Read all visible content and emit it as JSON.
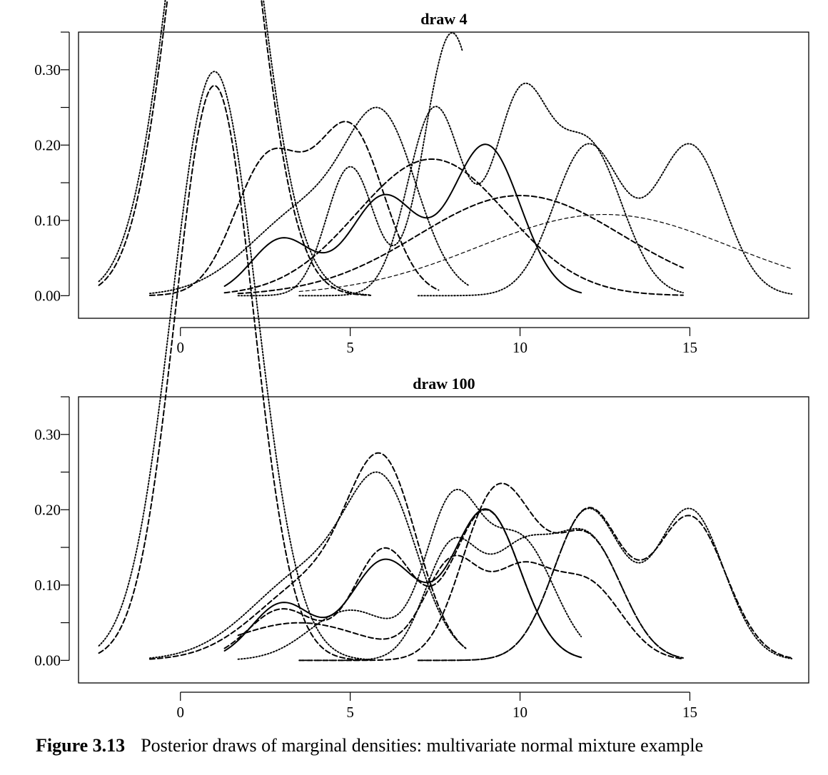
{
  "caption": {
    "number": "Figure 3.13",
    "text": "Posterior draws of marginal densities: multivariate normal mixture example"
  },
  "chart_data": [
    {
      "type": "line",
      "title": "draw 4",
      "xlabel": "",
      "ylabel": "",
      "xlim": [
        -3,
        18.5
      ],
      "ylim": [
        -0.03,
        0.35
      ],
      "x_ticks": [
        0,
        5,
        10,
        15
      ],
      "x_tick_labels": [
        "0",
        "5",
        "10",
        "15"
      ],
      "y_ticks": [
        0.0,
        0.1,
        0.2,
        0.3
      ],
      "y_tick_labels": [
        "0.00",
        "0.10",
        "0.20",
        "0.30"
      ],
      "grid": false,
      "series": [
        {
          "style": "dashed",
          "range": [
            -2.4,
            5.6
          ],
          "components": [
            [
              2.3,
              1.2,
              1.0
            ]
          ]
        },
        {
          "style": "dotted",
          "range": [
            -2.4,
            5.6
          ],
          "components": [
            [
              2.4,
              1.25,
              1.0
            ]
          ]
        },
        {
          "style": "dashed",
          "range": [
            -0.9,
            7.6
          ],
          "components": [
            [
              0.45,
              1.0,
              2.6
            ],
            [
              0.55,
              1.0,
              5.0
            ]
          ]
        },
        {
          "style": "dotted",
          "range": [
            -0.9,
            8.5
          ],
          "components": [
            [
              0.55,
              1.8,
              4.0
            ],
            [
              0.45,
              1.0,
              6.0
            ]
          ]
        },
        {
          "style": "solid",
          "range": [
            1.3,
            11.8
          ],
          "components": [
            [
              0.17,
              0.9,
              3.0
            ],
            [
              0.33,
              1.0,
              6.0
            ],
            [
              0.5,
              1.0,
              9.0
            ]
          ]
        },
        {
          "style": "dashed",
          "range": [
            1.3,
            14.8
          ],
          "components": [
            [
              1.0,
              2.2,
              7.4
            ]
          ]
        },
        {
          "style": "dotted",
          "range": [
            1.7,
            8.3
          ],
          "components": [
            [
              0.3,
              0.7,
              5.0
            ],
            [
              0.7,
              0.8,
              8.0
            ]
          ]
        },
        {
          "style": "dashed",
          "range": [
            1.7,
            14.8
          ],
          "components": [
            [
              1.0,
              3.0,
              10.0
            ]
          ]
        },
        {
          "style": "dotted",
          "range": [
            3.5,
            14.8
          ],
          "components": [
            [
              0.5,
              0.8,
              7.5
            ],
            [
              0.5,
              0.8,
              10.0
            ],
            [
              0.5,
              1.0,
              12.0
            ]
          ]
        },
        {
          "style": "dotted",
          "range": [
            7.0,
            18.0
          ],
          "components": [
            [
              0.5,
              1.0,
              12.0
            ],
            [
              0.5,
              1.0,
              15.0
            ]
          ]
        },
        {
          "style": "dashed-thin",
          "range": [
            3.5,
            18.0
          ],
          "components": [
            [
              1.0,
              3.7,
              12.5
            ]
          ]
        }
      ]
    },
    {
      "type": "line",
      "title": "draw 100",
      "xlabel": "",
      "ylabel": "",
      "xlim": [
        -3,
        18.5
      ],
      "ylim": [
        -0.03,
        0.35
      ],
      "x_ticks": [
        0,
        5,
        10,
        15
      ],
      "x_tick_labels": [
        "0",
        "5",
        "10",
        "15"
      ],
      "y_ticks": [
        0.0,
        0.1,
        0.2,
        0.3
      ],
      "y_tick_labels": [
        "0.00",
        "0.10",
        "0.20",
        "0.30"
      ],
      "grid": false,
      "series": [
        {
          "style": "dashed",
          "range": [
            -2.4,
            5.6
          ],
          "components": [
            [
              2.2,
              1.15,
              1.0
            ]
          ]
        },
        {
          "style": "dotted",
          "range": [
            -2.4,
            5.6
          ],
          "components": [
            [
              2.45,
              1.25,
              1.0
            ]
          ]
        },
        {
          "style": "dashed",
          "range": [
            -0.9,
            8.4
          ],
          "components": [
            [
              0.45,
              1.7,
              4.0
            ],
            [
              0.55,
              1.0,
              6.0
            ]
          ]
        },
        {
          "style": "dotted",
          "range": [
            -0.9,
            8.4
          ],
          "components": [
            [
              0.55,
              1.8,
              4.0
            ],
            [
              0.45,
              1.0,
              6.0
            ]
          ]
        },
        {
          "style": "solid",
          "range": [
            1.3,
            11.8
          ],
          "components": [
            [
              0.17,
              0.9,
              3.0
            ],
            [
              0.33,
              1.0,
              6.0
            ],
            [
              0.5,
              1.0,
              9.0
            ]
          ]
        },
        {
          "style": "dashed",
          "range": [
            1.3,
            11.8
          ],
          "components": [
            [
              0.17,
              1.0,
              3.0
            ],
            [
              0.33,
              0.9,
              6.0
            ],
            [
              0.5,
              1.0,
              9.0
            ]
          ]
        },
        {
          "style": "dotted",
          "range": [
            1.7,
            11.8
          ],
          "components": [
            [
              0.2,
              1.2,
              5.0
            ],
            [
              0.4,
              0.8,
              8.0
            ],
            [
              0.4,
              1.0,
              10.0
            ]
          ]
        },
        {
          "style": "dashed",
          "range": [
            1.7,
            14.8
          ],
          "components": [
            [
              0.25,
              2.0,
              3.5
            ],
            [
              0.25,
              0.8,
              8.0
            ],
            [
              0.25,
              0.9,
              10.0
            ],
            [
              0.25,
              1.0,
              12.0
            ]
          ]
        },
        {
          "style": "dotted",
          "range": [
            3.5,
            14.8
          ],
          "components": [
            [
              0.3,
              0.8,
              8.0
            ],
            [
              0.3,
              0.9,
              10.0
            ],
            [
              0.4,
              1.0,
              12.0
            ]
          ]
        },
        {
          "style": "dashed",
          "range": [
            3.5,
            14.8
          ],
          "components": [
            [
              0.35,
              0.9,
              9.0
            ],
            [
              0.25,
              0.9,
              10.0
            ],
            [
              0.4,
              1.0,
              12.0
            ]
          ]
        },
        {
          "style": "dotted",
          "range": [
            7.0,
            18.0
          ],
          "components": [
            [
              0.5,
              1.0,
              12.0
            ],
            [
              0.5,
              1.0,
              15.0
            ]
          ]
        },
        {
          "style": "dashed",
          "range": [
            7.0,
            18.0
          ],
          "components": [
            [
              0.5,
              1.0,
              12.0
            ],
            [
              0.5,
              1.05,
              15.0
            ]
          ]
        }
      ]
    }
  ]
}
